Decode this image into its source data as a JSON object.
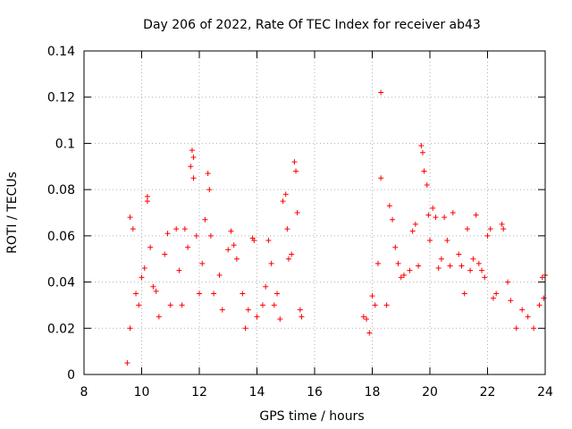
{
  "chart_data": {
    "type": "scatter",
    "title": "Day 206 of 2022, Rate Of TEC Index for receiver ab43",
    "xlabel": "GPS time / hours",
    "ylabel": "ROTI / TECUs",
    "xlim": [
      8,
      24
    ],
    "ylim": [
      0,
      0.14
    ],
    "x_ticks": [
      "8",
      "10",
      "12",
      "14",
      "16",
      "18",
      "20",
      "22",
      "24"
    ],
    "y_ticks": [
      "0",
      "0.02",
      "0.04",
      "0.06",
      "0.08",
      "0.1",
      "0.12",
      "0.14"
    ],
    "grid": true,
    "marker": "+",
    "color": "#ff0000",
    "series": [
      {
        "points": [
          [
            9.5,
            0.005
          ],
          [
            9.6,
            0.02
          ],
          [
            9.6,
            0.068
          ],
          [
            9.7,
            0.063
          ],
          [
            9.8,
            0.035
          ],
          [
            9.9,
            0.03
          ],
          [
            10.0,
            0.042
          ],
          [
            10.1,
            0.046
          ],
          [
            10.2,
            0.077
          ],
          [
            10.2,
            0.075
          ],
          [
            10.3,
            0.055
          ],
          [
            10.4,
            0.038
          ],
          [
            10.5,
            0.036
          ],
          [
            10.6,
            0.025
          ],
          [
            10.8,
            0.052
          ],
          [
            10.9,
            0.061
          ],
          [
            11.0,
            0.03
          ],
          [
            11.2,
            0.063
          ],
          [
            11.3,
            0.045
          ],
          [
            11.4,
            0.03
          ],
          [
            11.5,
            0.063
          ],
          [
            11.6,
            0.055
          ],
          [
            11.7,
            0.09
          ],
          [
            11.75,
            0.097
          ],
          [
            11.8,
            0.094
          ],
          [
            11.8,
            0.085
          ],
          [
            11.9,
            0.06
          ],
          [
            12.0,
            0.035
          ],
          [
            12.1,
            0.048
          ],
          [
            12.2,
            0.067
          ],
          [
            12.3,
            0.087
          ],
          [
            12.35,
            0.08
          ],
          [
            12.4,
            0.06
          ],
          [
            12.5,
            0.035
          ],
          [
            12.7,
            0.043
          ],
          [
            12.8,
            0.028
          ],
          [
            13.0,
            0.054
          ],
          [
            13.1,
            0.062
          ],
          [
            13.2,
            0.056
          ],
          [
            13.3,
            0.05
          ],
          [
            13.5,
            0.035
          ],
          [
            13.6,
            0.02
          ],
          [
            13.7,
            0.028
          ],
          [
            13.85,
            0.059
          ],
          [
            13.9,
            0.058
          ],
          [
            14.0,
            0.025
          ],
          [
            14.2,
            0.03
          ],
          [
            14.3,
            0.038
          ],
          [
            14.4,
            0.058
          ],
          [
            14.5,
            0.048
          ],
          [
            14.6,
            0.03
          ],
          [
            14.7,
            0.035
          ],
          [
            14.8,
            0.024
          ],
          [
            14.9,
            0.075
          ],
          [
            15.0,
            0.078
          ],
          [
            15.05,
            0.063
          ],
          [
            15.1,
            0.05
          ],
          [
            15.2,
            0.052
          ],
          [
            15.3,
            0.092
          ],
          [
            15.35,
            0.088
          ],
          [
            15.4,
            0.07
          ],
          [
            15.5,
            0.028
          ],
          [
            15.55,
            0.025
          ],
          [
            17.7,
            0.025
          ],
          [
            17.8,
            0.024
          ],
          [
            17.9,
            0.018
          ],
          [
            18.0,
            0.034
          ],
          [
            18.1,
            0.03
          ],
          [
            18.2,
            0.048
          ],
          [
            18.3,
            0.122
          ],
          [
            18.3,
            0.085
          ],
          [
            18.5,
            0.03
          ],
          [
            18.6,
            0.073
          ],
          [
            18.7,
            0.067
          ],
          [
            18.8,
            0.055
          ],
          [
            18.9,
            0.048
          ],
          [
            19.0,
            0.042
          ],
          [
            19.1,
            0.043
          ],
          [
            19.3,
            0.045
          ],
          [
            19.4,
            0.062
          ],
          [
            19.5,
            0.065
          ],
          [
            19.6,
            0.047
          ],
          [
            19.7,
            0.099
          ],
          [
            19.75,
            0.096
          ],
          [
            19.8,
            0.088
          ],
          [
            19.9,
            0.082
          ],
          [
            19.95,
            0.069
          ],
          [
            20.0,
            0.058
          ],
          [
            20.1,
            0.072
          ],
          [
            20.2,
            0.068
          ],
          [
            20.3,
            0.046
          ],
          [
            20.4,
            0.05
          ],
          [
            20.5,
            0.068
          ],
          [
            20.6,
            0.058
          ],
          [
            20.7,
            0.047
          ],
          [
            20.8,
            0.07
          ],
          [
            21.0,
            0.052
          ],
          [
            21.1,
            0.047
          ],
          [
            21.2,
            0.035
          ],
          [
            21.3,
            0.063
          ],
          [
            21.4,
            0.045
          ],
          [
            21.5,
            0.05
          ],
          [
            21.6,
            0.069
          ],
          [
            21.7,
            0.048
          ],
          [
            21.8,
            0.045
          ],
          [
            21.9,
            0.042
          ],
          [
            22.0,
            0.06
          ],
          [
            22.1,
            0.063
          ],
          [
            22.2,
            0.033
          ],
          [
            22.3,
            0.035
          ],
          [
            22.5,
            0.065
          ],
          [
            22.55,
            0.063
          ],
          [
            22.7,
            0.04
          ],
          [
            22.8,
            0.032
          ],
          [
            23.0,
            0.02
          ],
          [
            23.2,
            0.028
          ],
          [
            23.4,
            0.025
          ],
          [
            23.6,
            0.02
          ],
          [
            23.8,
            0.03
          ],
          [
            23.9,
            0.042
          ],
          [
            24.0,
            0.043
          ],
          [
            23.95,
            0.033
          ]
        ]
      }
    ]
  }
}
